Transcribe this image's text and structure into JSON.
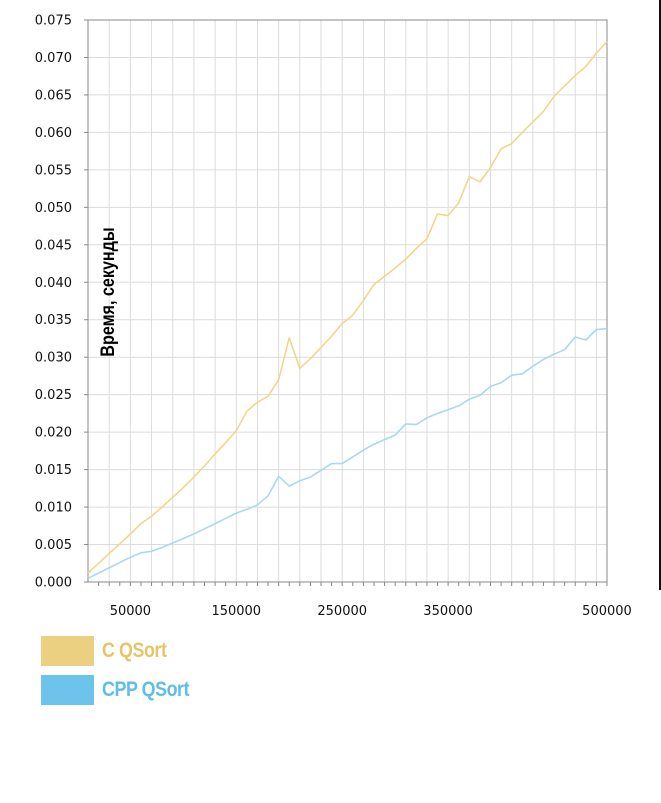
{
  "chart_data": {
    "type": "line",
    "title": "",
    "xlabel": "",
    "ylabel": "Время, секунды",
    "xlim": [
      10000,
      500000
    ],
    "ylim": [
      0,
      0.075
    ],
    "xticks": [
      50000,
      150000,
      250000,
      350000,
      500000
    ],
    "xtick_labels": [
      "50000",
      "150000",
      "250000",
      "350000",
      "500000"
    ],
    "yticks": [
      0.0,
      0.005,
      0.01,
      0.015,
      0.02,
      0.025,
      0.03,
      0.035,
      0.04,
      0.045,
      0.05,
      0.055,
      0.06,
      0.065,
      0.07,
      0.075
    ],
    "ytick_labels": [
      "0.000",
      "0.005",
      "0.010",
      "0.015",
      "0.020",
      "0.025",
      "0.030",
      "0.035",
      "0.040",
      "0.045",
      "0.050",
      "0.055",
      "0.060",
      "0.065",
      "0.070",
      "0.075"
    ],
    "grid": true,
    "legend_position": "bottom-left",
    "x": [
      10000,
      20000,
      30000,
      40000,
      50000,
      60000,
      70000,
      80000,
      90000,
      100000,
      110000,
      120000,
      130000,
      140000,
      150000,
      160000,
      170000,
      180000,
      190000,
      200000,
      210000,
      220000,
      230000,
      240000,
      250000,
      260000,
      270000,
      280000,
      290000,
      300000,
      310000,
      320000,
      330000,
      340000,
      350000,
      360000,
      370000,
      380000,
      390000,
      400000,
      410000,
      420000,
      430000,
      440000,
      450000,
      460000,
      470000,
      480000,
      490000,
      500000
    ],
    "series": [
      {
        "name": "C QSort",
        "color": "#f0d78c",
        "values": [
          0.0012,
          0.0025,
          0.0038,
          0.0051,
          0.0064,
          0.0078,
          0.0088,
          0.01,
          0.0113,
          0.0126,
          0.014,
          0.0155,
          0.0171,
          0.0186,
          0.0202,
          0.0228,
          0.024,
          0.0248,
          0.027,
          0.0326,
          0.0285,
          0.0298,
          0.0313,
          0.0328,
          0.0345,
          0.0356,
          0.0376,
          0.0397,
          0.0408,
          0.0419,
          0.0431,
          0.0445,
          0.0458,
          0.0491,
          0.0489,
          0.0506,
          0.0541,
          0.0534,
          0.0553,
          0.0578,
          0.0585,
          0.06,
          0.0614,
          0.0628,
          0.0648,
          0.0662,
          0.0676,
          0.0688,
          0.0706,
          0.0721
        ]
      },
      {
        "name": "CPP QSort",
        "color": "#a9d9ee",
        "values": [
          0.0005,
          0.0012,
          0.0019,
          0.0026,
          0.0033,
          0.0039,
          0.0041,
          0.0046,
          0.0052,
          0.0058,
          0.0064,
          0.0071,
          0.0078,
          0.0085,
          0.0092,
          0.0097,
          0.0103,
          0.0115,
          0.0141,
          0.0128,
          0.0135,
          0.014,
          0.0149,
          0.0158,
          0.0158,
          0.0167,
          0.0176,
          0.0184,
          0.019,
          0.0196,
          0.0211,
          0.021,
          0.0219,
          0.0225,
          0.023,
          0.0235,
          0.0244,
          0.0249,
          0.0261,
          0.0266,
          0.0276,
          0.0278,
          0.0288,
          0.0297,
          0.0304,
          0.031,
          0.0327,
          0.0323,
          0.0337,
          0.0338
        ]
      }
    ]
  },
  "legend": {
    "items": [
      {
        "label": "C QSort",
        "color": "#ecd081",
        "text_color": "#e6c56a"
      },
      {
        "label": "CPP QSort",
        "color": "#6cc4ec",
        "text_color": "#5fbde8"
      }
    ]
  }
}
